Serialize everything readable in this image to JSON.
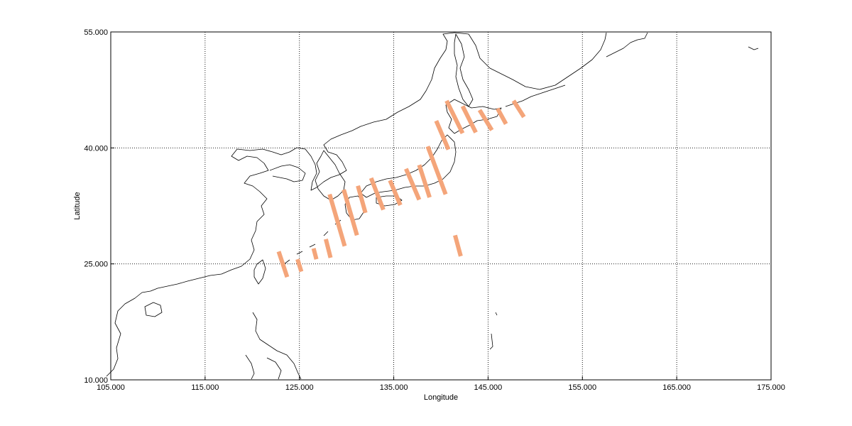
{
  "chart_data": {
    "type": "scatter",
    "title": "",
    "xlabel": "Longitude",
    "ylabel": "Latitude",
    "xlim": [
      105,
      175
    ],
    "ylim": [
      10,
      55
    ],
    "xticks": [
      105,
      115,
      125,
      135,
      145,
      155,
      165,
      175
    ],
    "yticks": [
      10,
      25,
      40,
      55
    ],
    "xtick_labels": [
      "105.000",
      "115.000",
      "125.000",
      "135.000",
      "145.000",
      "155.000",
      "165.000",
      "175.000"
    ],
    "ytick_labels": [
      "10.000",
      "25.000",
      "40.000",
      "55.000"
    ],
    "grid": true,
    "swath_color": "#f4a57a",
    "coastline_color": "#000000",
    "swaths": [
      {
        "lon1": 122.8,
        "lat1": 26.6,
        "lon2": 123.7,
        "lat2": 23.3
      },
      {
        "lon1": 124.8,
        "lat1": 25.6,
        "lon2": 125.2,
        "lat2": 24.0
      },
      {
        "lon1": 126.5,
        "lat1": 27.0,
        "lon2": 126.8,
        "lat2": 25.6
      },
      {
        "lon1": 127.8,
        "lat1": 28.2,
        "lon2": 128.3,
        "lat2": 25.8
      },
      {
        "lon1": 128.2,
        "lat1": 34.0,
        "lon2": 129.8,
        "lat2": 27.3
      },
      {
        "lon1": 129.7,
        "lat1": 34.6,
        "lon2": 131.1,
        "lat2": 28.7
      },
      {
        "lon1": 131.2,
        "lat1": 35.1,
        "lon2": 132.0,
        "lat2": 31.6
      },
      {
        "lon1": 132.6,
        "lat1": 36.1,
        "lon2": 133.9,
        "lat2": 32.0
      },
      {
        "lon1": 134.6,
        "lat1": 35.8,
        "lon2": 135.7,
        "lat2": 32.6
      },
      {
        "lon1": 136.3,
        "lat1": 37.3,
        "lon2": 137.7,
        "lat2": 33.3
      },
      {
        "lon1": 137.7,
        "lat1": 37.8,
        "lon2": 138.8,
        "lat2": 33.6
      },
      {
        "lon1": 138.6,
        "lat1": 40.2,
        "lon2": 140.5,
        "lat2": 34.0
      },
      {
        "lon1": 139.5,
        "lat1": 43.5,
        "lon2": 140.8,
        "lat2": 39.8
      },
      {
        "lon1": 140.6,
        "lat1": 46.1,
        "lon2": 142.3,
        "lat2": 41.9
      },
      {
        "lon1": 142.3,
        "lat1": 45.4,
        "lon2": 143.7,
        "lat2": 42.0
      },
      {
        "lon1": 144.1,
        "lat1": 44.9,
        "lon2": 145.4,
        "lat2": 42.3
      },
      {
        "lon1": 146.0,
        "lat1": 45.1,
        "lon2": 146.9,
        "lat2": 43.1
      },
      {
        "lon1": 147.7,
        "lat1": 46.1,
        "lon2": 148.8,
        "lat2": 44.0
      },
      {
        "lon1": 141.5,
        "lat1": 28.7,
        "lon2": 142.1,
        "lat2": 26.0
      }
    ]
  }
}
